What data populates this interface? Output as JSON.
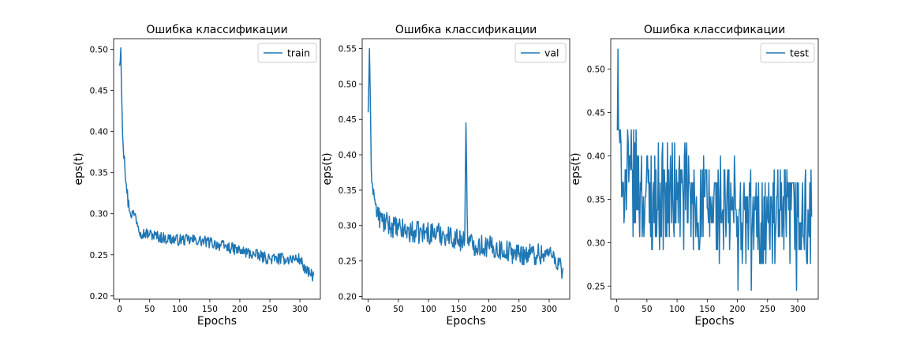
{
  "chart_data": [
    {
      "type": "line",
      "title": "Ошибка классификации",
      "xlabel": "Epochs",
      "ylabel": "eps(t)",
      "xlim": [
        -10,
        334
      ],
      "ylim": [
        0.196,
        0.513
      ],
      "xticks": [
        0,
        50,
        100,
        150,
        200,
        250,
        300
      ],
      "yticks": [
        0.2,
        0.25,
        0.3,
        0.35,
        0.4,
        0.45,
        0.5
      ],
      "ytick_labels": [
        "0.20",
        "0.25",
        "0.30",
        "0.35",
        "0.40",
        "0.45",
        "0.50"
      ],
      "legend_position": "upper right",
      "color": "#1f77b4",
      "series": [
        {
          "name": "train",
          "x": [
            0,
            2,
            5,
            8,
            12,
            18,
            25,
            35,
            50,
            75,
            100,
            125,
            150,
            175,
            200,
            225,
            250,
            275,
            300,
            310,
            320,
            323
          ],
          "y": [
            0.48,
            0.502,
            0.395,
            0.37,
            0.325,
            0.3,
            0.3,
            0.277,
            0.275,
            0.27,
            0.268,
            0.268,
            0.265,
            0.26,
            0.255,
            0.25,
            0.245,
            0.245,
            0.245,
            0.23,
            0.225,
            0.225
          ]
        }
      ]
    },
    {
      "type": "line",
      "title": "Ошибка классификации",
      "xlabel": "Epochs",
      "ylabel": "eps(t)",
      "xlim": [
        -10,
        334
      ],
      "ylim": [
        0.196,
        0.564
      ],
      "xticks": [
        0,
        50,
        100,
        150,
        200,
        250,
        300
      ],
      "yticks": [
        0.2,
        0.25,
        0.3,
        0.35,
        0.4,
        0.45,
        0.5,
        0.55
      ],
      "ytick_labels": [
        "0.20",
        "0.25",
        "0.30",
        "0.35",
        "0.40",
        "0.45",
        "0.50",
        "0.55"
      ],
      "legend_position": "upper right",
      "color": "#1f77b4",
      "series": [
        {
          "name": "val",
          "x": [
            0,
            2,
            5,
            10,
            15,
            25,
            50,
            75,
            100,
            125,
            150,
            160,
            162,
            165,
            200,
            225,
            250,
            275,
            290,
            300,
            310,
            320,
            323
          ],
          "y": [
            0.46,
            0.55,
            0.38,
            0.34,
            0.315,
            0.305,
            0.295,
            0.29,
            0.29,
            0.288,
            0.28,
            0.28,
            0.445,
            0.275,
            0.27,
            0.265,
            0.26,
            0.26,
            0.26,
            0.26,
            0.255,
            0.24,
            0.24
          ]
        }
      ]
    },
    {
      "type": "line",
      "title": "Ошибка классификации",
      "xlabel": "Epochs",
      "ylabel": "eps(t)",
      "xlim": [
        -10,
        334
      ],
      "ylim": [
        0.235,
        0.535
      ],
      "xticks": [
        0,
        50,
        100,
        150,
        200,
        250,
        300
      ],
      "yticks": [
        0.25,
        0.3,
        0.35,
        0.4,
        0.45,
        0.5
      ],
      "ytick_labels": [
        "0.25",
        "0.30",
        "0.35",
        "0.40",
        "0.45",
        "0.50"
      ],
      "legend_position": "upper right",
      "color": "#1f77b4",
      "series": [
        {
          "name": "test",
          "x": [
            0,
            2,
            5,
            10,
            20,
            40,
            60,
            80,
            100,
            125,
            150,
            175,
            200,
            225,
            250,
            275,
            300,
            323
          ],
          "y": [
            0.43,
            0.523,
            0.415,
            0.37,
            0.37,
            0.36,
            0.355,
            0.355,
            0.35,
            0.345,
            0.34,
            0.335,
            0.33,
            0.33,
            0.33,
            0.33,
            0.33,
            0.33
          ]
        }
      ]
    }
  ]
}
